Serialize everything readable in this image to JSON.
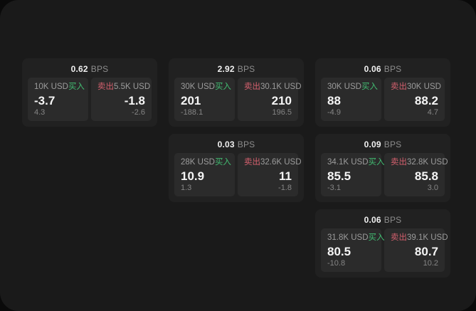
{
  "labels": {
    "bps_unit": "BPS",
    "buy": "买入",
    "sell": "卖出"
  },
  "colors": {
    "buy_green": "#42bd72",
    "sell_red": "#d4606e",
    "panel_bg": "#1a1a1a",
    "card_bg": "#212121",
    "tile_bg": "#2b2b2b"
  },
  "cards": [
    {
      "bps": "0.62",
      "row": 1,
      "col": 1,
      "buy": {
        "amount": "10K USD",
        "price": "-3.7",
        "sub": "4.3"
      },
      "sell": {
        "amount": "5.5K USD",
        "price": "-1.8",
        "sub": "-2.6"
      }
    },
    {
      "bps": "2.92",
      "row": 1,
      "col": 2,
      "buy": {
        "amount": "30K USD",
        "price": "201",
        "sub": "-188.1"
      },
      "sell": {
        "amount": "30.1K USD",
        "price": "210",
        "sub": "196.5"
      }
    },
    {
      "bps": "0.06",
      "row": 1,
      "col": 3,
      "buy": {
        "amount": "30K USD",
        "price": "88",
        "sub": "-4.9"
      },
      "sell": {
        "amount": "30K USD",
        "price": "88.2",
        "sub": "4.7"
      }
    },
    {
      "bps": "0.03",
      "row": 2,
      "col": 2,
      "buy": {
        "amount": "28K USD",
        "price": "10.9",
        "sub": "1.3"
      },
      "sell": {
        "amount": "32.6K USD",
        "price": "11",
        "sub": "-1.8"
      }
    },
    {
      "bps": "0.09",
      "row": 2,
      "col": 3,
      "buy": {
        "amount": "34.1K USD",
        "price": "85.5",
        "sub": "-3.1"
      },
      "sell": {
        "amount": "32.8K USD",
        "price": "85.8",
        "sub": "3.0"
      }
    },
    {
      "bps": "0.06",
      "row": 3,
      "col": 3,
      "buy": {
        "amount": "31.8K USD",
        "price": "80.5",
        "sub": "-10.8"
      },
      "sell": {
        "amount": "39.1K USD",
        "price": "80.7",
        "sub": "10.2"
      }
    }
  ]
}
